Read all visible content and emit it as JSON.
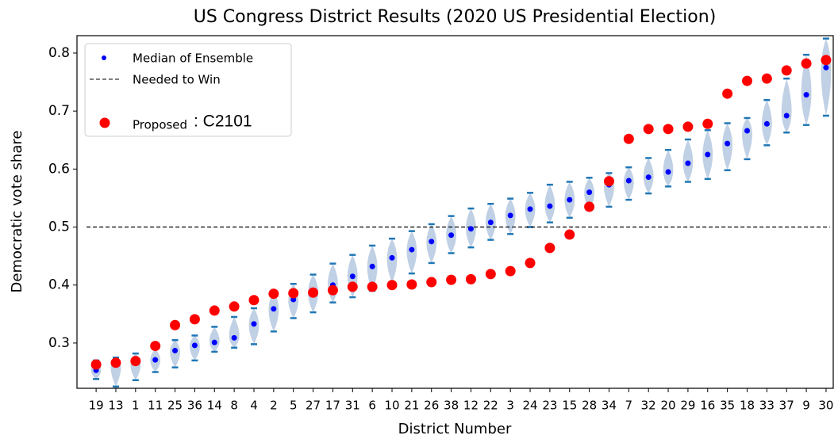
{
  "chart_data": {
    "type": "violin",
    "title": "US Congress District Results  (2020 US Presidential Election)",
    "xlabel": "District Number",
    "ylabel": "Democratic vote share",
    "categories": [
      "19",
      "13",
      "1",
      "11",
      "25",
      "36",
      "14",
      "8",
      "4",
      "2",
      "5",
      "27",
      "17",
      "31",
      "6",
      "10",
      "21",
      "26",
      "38",
      "12",
      "22",
      "3",
      "24",
      "23",
      "15",
      "28",
      "34",
      "7",
      "32",
      "20",
      "29",
      "16",
      "35",
      "18",
      "33",
      "37",
      "9",
      "30"
    ],
    "ylim": [
      0.222,
      0.83
    ],
    "yticks": [
      0.3,
      0.4,
      0.5,
      0.6,
      0.7,
      0.8
    ],
    "legend_position": "upper left",
    "ensemble": {
      "color": "#b0c4de",
      "tick_color": "#1f77b4",
      "min": [
        0.238,
        0.225,
        0.236,
        0.25,
        0.258,
        0.27,
        0.285,
        0.292,
        0.298,
        0.32,
        0.343,
        0.353,
        0.37,
        0.379,
        0.39,
        0.404,
        0.42,
        0.438,
        0.455,
        0.465,
        0.478,
        0.488,
        0.5,
        0.508,
        0.516,
        0.53,
        0.535,
        0.547,
        0.558,
        0.57,
        0.578,
        0.583,
        0.598,
        0.617,
        0.641,
        0.663,
        0.676,
        0.692
      ],
      "max": [
        0.27,
        0.275,
        0.282,
        0.29,
        0.305,
        0.313,
        0.328,
        0.345,
        0.36,
        0.39,
        0.402,
        0.418,
        0.437,
        0.452,
        0.468,
        0.48,
        0.493,
        0.505,
        0.519,
        0.532,
        0.54,
        0.549,
        0.559,
        0.573,
        0.578,
        0.585,
        0.593,
        0.603,
        0.619,
        0.633,
        0.651,
        0.667,
        0.679,
        0.688,
        0.719,
        0.756,
        0.797,
        0.825
      ]
    },
    "series": [
      {
        "name": "Median of Ensemble",
        "color": "#0000ff",
        "values": [
          0.253,
          0.265,
          0.265,
          0.271,
          0.287,
          0.296,
          0.301,
          0.309,
          0.333,
          0.359,
          0.375,
          0.389,
          0.4,
          0.415,
          0.432,
          0.447,
          0.461,
          0.475,
          0.486,
          0.497,
          0.508,
          0.52,
          0.531,
          0.536,
          0.547,
          0.56,
          0.573,
          0.58,
          0.586,
          0.595,
          0.61,
          0.625,
          0.644,
          0.666,
          0.678,
          0.692,
          0.728,
          0.775
        ]
      },
      {
        "name": "Proposed",
        "plan": ": C2101",
        "color": "#ff0000",
        "values": [
          0.263,
          0.266,
          0.269,
          0.295,
          0.331,
          0.341,
          0.356,
          0.363,
          0.374,
          0.385,
          0.386,
          0.387,
          0.391,
          0.397,
          0.397,
          0.4,
          0.401,
          0.405,
          0.409,
          0.41,
          0.419,
          0.424,
          0.438,
          0.464,
          0.487,
          0.535,
          0.579,
          0.652,
          0.669,
          0.669,
          0.673,
          0.678,
          0.73,
          0.752,
          0.756,
          0.77,
          0.782,
          0.788
        ]
      }
    ],
    "threshold": {
      "name": "Needed to Win",
      "value": 0.5,
      "color": "#000000"
    }
  }
}
